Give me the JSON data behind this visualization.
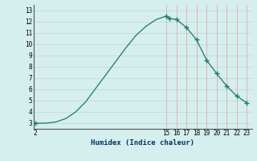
{
  "x": [
    2,
    3,
    4,
    5,
    6,
    7,
    8,
    9,
    10,
    11,
    12,
    13,
    14,
    15,
    15.3,
    16,
    17,
    18,
    19,
    20,
    21,
    22,
    23
  ],
  "y": [
    3.0,
    3.0,
    3.1,
    3.4,
    4.0,
    4.9,
    6.1,
    7.3,
    8.5,
    9.7,
    10.8,
    11.6,
    12.2,
    12.5,
    12.3,
    12.2,
    11.5,
    10.4,
    8.6,
    7.4,
    6.3,
    5.4,
    4.8
  ],
  "marker_x": [
    2,
    15,
    15.3,
    16,
    17,
    18,
    19,
    20,
    21,
    22,
    23
  ],
  "marker_y": [
    3.0,
    12.5,
    12.3,
    12.2,
    11.5,
    10.4,
    8.6,
    7.4,
    6.3,
    5.4,
    4.8
  ],
  "line_color": "#1a7a6e",
  "marker_color": "#1a7a6e",
  "bg_color": "#d4efed",
  "hgrid_color": "#c8d8d6",
  "vgrid_color": "#e8a8a8",
  "xlabel": "Humidex (Indice chaleur)",
  "xticks": [
    2,
    15,
    16,
    17,
    18,
    19,
    20,
    21,
    22,
    23
  ],
  "yticks": [
    3,
    4,
    5,
    6,
    7,
    8,
    9,
    10,
    11,
    12,
    13
  ],
  "xlim": [
    1.8,
    23.5
  ],
  "ylim": [
    2.5,
    13.5
  ],
  "figsize": [
    3.2,
    2.0
  ],
  "dpi": 100
}
